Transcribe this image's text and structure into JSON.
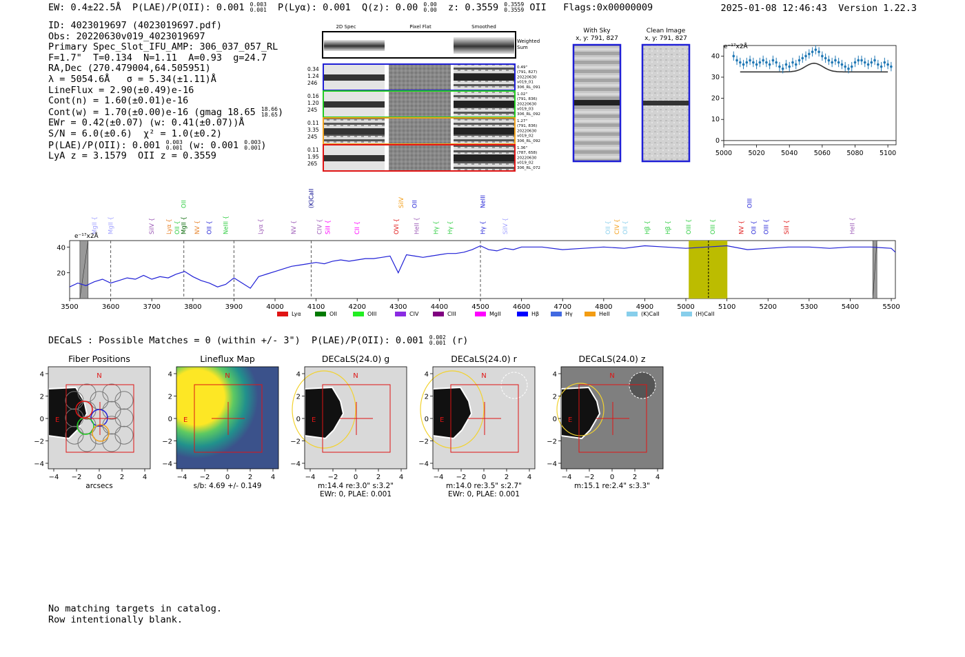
{
  "header": {
    "ew_label": "EW:",
    "ew_value": "0.4±22.5Å",
    "plae_label": "P(LAE)/P(OII):",
    "plae_value": "0.001",
    "plae_sup": "0.003",
    "plae_sub": "0.001",
    "plya_label": "P(Lyα):",
    "plya_value": "0.001",
    "qz_label": "Q(z):",
    "qz_value": "0.00",
    "qz_sup": "0.00",
    "qz_sub": "0.00",
    "z_label": "z:",
    "z_value": "0.3559",
    "z_sup": "0.3559",
    "z_sub": "0.3559",
    "z_line": "OII",
    "flags": "Flags:0x00000009",
    "timestamp": "2025-01-08 12:46:43",
    "version": "Version 1.22.3"
  },
  "info": {
    "id": "ID: 4023019697 (4023019697.pdf)",
    "obs": "Obs: 20220630v019_4023019697",
    "primary": "Primary Spec_Slot_IFU_AMP: 306_037_057_RL",
    "params": "F=1.7\"  T=0.134  N=1.11  A=0.93  g=24.7",
    "radec": "RA,Dec (270.479004,64.505951)",
    "lambda": "λ = 5054.6Å   σ = 5.34(±1.11)Å",
    "lineflux": "LineFlux = 2.90(±0.49)e-16",
    "contn": "Cont(n) = 1.60(±0.01)e-16",
    "contw": "Cont(w) = 1.70(±0.00)e-16 (gmag 18.65",
    "gmag_sup": "18.66",
    "gmag_sub": "18.65",
    "contw_close": ")",
    "ewr": "EWr = 0.42(±0.07) (w: 0.41(±0.07))Å",
    "sn": "S/N = 6.0(±0.6)  χ² = 1.0(±0.2)",
    "plae": "P(LAE)/P(OII): 0.001",
    "plae_sup": "0.003",
    "plae_sub": "0.001",
    "plae_w": "(w: 0.001",
    "plae_w_sup": "0.003",
    "plae_w_sub": "0.001",
    "plae_close": ")",
    "lya": "LyA z = 3.1579  OII z = 0.3559"
  },
  "cutouts": {
    "col_2d": "2D Spec",
    "col_flat": "Pixel Flat",
    "col_smooth": "Smoothed",
    "weighted_sum": [
      "Weighted",
      "Sum"
    ],
    "rows": [
      {
        "left": [
          "0.34",
          "1.24",
          "246"
        ],
        "right": [
          "0.49\"",
          "(791, 827)",
          "20220630",
          "v019_01",
          "306_RL_091"
        ],
        "color": "#1f1fd6"
      },
      {
        "left": [
          "0.16",
          "1.20",
          "245"
        ],
        "right": [
          "1.02\"",
          "(791, 836)",
          "20220630",
          "v019_03",
          "306_RL_092"
        ],
        "color": "#22cc22"
      },
      {
        "left": [
          "0.11",
          "3.35",
          "245"
        ],
        "right": [
          "1.27\"",
          "(791, 836)",
          "20220630",
          "v019_02",
          "306_RL_092"
        ],
        "color": "#f2a21d"
      },
      {
        "left": [
          "0.11",
          "1.95",
          "265"
        ],
        "right": [
          "1.36\"",
          "(787, 658)",
          "20220630",
          "v019_02",
          "306_RL_072"
        ],
        "color": "#e01414"
      }
    ]
  },
  "sky": {
    "with_sky_title": "With Sky",
    "with_sky_xy": "x, y: 791, 827",
    "clean_title": "Clean Image",
    "clean_xy": "x, y: 791, 827"
  },
  "chart_data": [
    {
      "type": "scatter",
      "title": "",
      "ylabel": "e⁻¹⁷x2Å",
      "xlim": [
        5000,
        5105
      ],
      "ylim": [
        -2,
        45
      ],
      "xticks": [
        "5000",
        "5020",
        "5040",
        "5060",
        "5080",
        "5100"
      ],
      "yticks": [
        "0",
        "10",
        "20",
        "30",
        "40"
      ],
      "x": [
        5006,
        5008,
        5010,
        5012,
        5014,
        5016,
        5018,
        5020,
        5022,
        5024,
        5026,
        5028,
        5030,
        5032,
        5034,
        5036,
        5038,
        5040,
        5042,
        5044,
        5046,
        5048,
        5050,
        5052,
        5054,
        5056,
        5058,
        5060,
        5062,
        5064,
        5066,
        5068,
        5070,
        5072,
        5074,
        5076,
        5078,
        5080,
        5082,
        5084,
        5086,
        5088,
        5090,
        5092,
        5094,
        5096,
        5098,
        5100,
        5102
      ],
      "y": [
        40,
        38,
        37,
        36,
        37,
        38,
        37,
        36,
        37,
        38,
        37,
        36,
        38,
        37,
        35,
        34,
        36,
        35,
        37,
        36,
        38,
        39,
        40,
        41,
        42,
        43,
        42,
        40,
        39,
        38,
        37,
        38,
        37,
        36,
        35,
        34,
        35,
        37,
        38,
        38,
        37,
        36,
        37,
        38,
        36,
        35,
        37,
        36,
        35
      ],
      "yerr": 2.2,
      "model": {
        "base": 32.5,
        "peak": 36.6,
        "center": 5055,
        "sigma": 5.34
      }
    },
    {
      "type": "line",
      "title": "",
      "ylabel": "e⁻¹⁷x2Å",
      "xlim": [
        3500,
        5510
      ],
      "ylim": [
        0,
        45
      ],
      "xticks": [
        "3500",
        "3600",
        "3700",
        "3800",
        "3900",
        "4000",
        "4100",
        "4200",
        "4300",
        "4400",
        "4500",
        "4600",
        "4700",
        "4800",
        "4900",
        "5000",
        "5100",
        "5200",
        "5300",
        "5400",
        "5500"
      ],
      "yticks": [
        "20",
        "40"
      ],
      "x": [
        3500,
        3520,
        3540,
        3560,
        3580,
        3600,
        3620,
        3640,
        3660,
        3680,
        3700,
        3720,
        3740,
        3760,
        3780,
        3800,
        3820,
        3840,
        3860,
        3880,
        3900,
        3920,
        3940,
        3960,
        3980,
        4000,
        4020,
        4040,
        4060,
        4080,
        4100,
        4120,
        4140,
        4160,
        4180,
        4200,
        4220,
        4240,
        4260,
        4280,
        4300,
        4320,
        4340,
        4360,
        4380,
        4400,
        4420,
        4440,
        4460,
        4480,
        4500,
        4520,
        4540,
        4560,
        4580,
        4600,
        4650,
        4700,
        4750,
        4800,
        4850,
        4900,
        4950,
        5000,
        5050,
        5100,
        5150,
        5200,
        5250,
        5300,
        5350,
        5400,
        5450,
        5500,
        5510
      ],
      "y": [
        9,
        12,
        10,
        13,
        15,
        12,
        14,
        16,
        15,
        18,
        15,
        17,
        16,
        19,
        21,
        17,
        14,
        12,
        9,
        11,
        16,
        12,
        8,
        17,
        19,
        21,
        23,
        25,
        26,
        27,
        28,
        27,
        29,
        30,
        29,
        30,
        31,
        31,
        32,
        33,
        20,
        34,
        33,
        32,
        33,
        34,
        35,
        35,
        36,
        38,
        41,
        38,
        37,
        39,
        38,
        40,
        40,
        38,
        39,
        40,
        39,
        41,
        40,
        39,
        40,
        41,
        38,
        39,
        40,
        40,
        39,
        40,
        40,
        39,
        36
      ],
      "vlines": [
        3600,
        3778,
        3900,
        4088,
        4500
      ],
      "highlight": [
        5007,
        5101
      ],
      "highlight_line": 5055,
      "sky_masks": [
        [
          3525,
          3545
        ],
        [
          5455,
          5465
        ]
      ],
      "line_ids": [
        {
          "name": "MgII",
          "x": 3560,
          "color": "#a0a0ff"
        },
        {
          "name": "MgII",
          "x": 3600,
          "color": "#a0a0ff"
        },
        {
          "name": "SiIV",
          "x": 3700,
          "color": "#9b59b6"
        },
        {
          "name": "Lyα",
          "x": 3742,
          "color": "#e67e22"
        },
        {
          "name": "OII",
          "x": 3762,
          "color": "#2ecc40"
        },
        {
          "name": "MgII",
          "x": 3778,
          "color": "#006400"
        },
        {
          "name": "NV",
          "x": 3810,
          "color": "#e67e22"
        },
        {
          "name": "OII",
          "x": 3840,
          "color": "#1f1fd6"
        },
        {
          "name": "NeIII",
          "x": 3880,
          "color": "#2ecc40"
        },
        {
          "name": "Lyα",
          "x": 3965,
          "color": "#9b59b6"
        },
        {
          "name": "NV",
          "x": 4045,
          "color": "#9b59b6"
        },
        {
          "name": "CIV",
          "x": 4108,
          "color": "#9b59b6"
        },
        {
          "name": "SiII",
          "x": 4128,
          "color": "#ff00ff"
        },
        {
          "name": "CII",
          "x": 4200,
          "color": "#ff00ff"
        },
        {
          "name": "OVI",
          "x": 4295,
          "color": "#e01414"
        },
        {
          "name": "HeII",
          "x": 4345,
          "color": "#9b59b6"
        },
        {
          "name": "Hγ",
          "x": 4392,
          "color": "#2ecc40"
        },
        {
          "name": "Hγ",
          "x": 4426,
          "color": "#2ecc40"
        },
        {
          "name": "Hγ",
          "x": 4506,
          "color": "#1f1fd6"
        },
        {
          "name": "SiIV",
          "x": 4560,
          "color": "#a0a0ff"
        },
        {
          "name": "OII",
          "x": 4810,
          "color": "#87ceeb"
        },
        {
          "name": "CIV",
          "x": 4832,
          "color": "#f39c12"
        },
        {
          "name": "OII",
          "x": 4852,
          "color": "#87ceeb"
        },
        {
          "name": "Hβ",
          "x": 4906,
          "color": "#2ecc40"
        },
        {
          "name": "Hβ",
          "x": 4956,
          "color": "#2ecc40"
        },
        {
          "name": "OIII",
          "x": 5007,
          "color": "#2ecc40"
        },
        {
          "name": "OIII",
          "x": 5065,
          "color": "#2ecc40"
        },
        {
          "name": "NV",
          "x": 5135,
          "color": "#e01414"
        },
        {
          "name": "OII",
          "x": 5165,
          "color": "#1f1fd6"
        },
        {
          "name": "OIII",
          "x": 5195,
          "color": "#1f1fd6"
        },
        {
          "name": "SiII",
          "x": 5245,
          "color": "#e01414"
        },
        {
          "name": "HeII",
          "x": 5405,
          "color": "#9b59b6"
        }
      ],
      "line_ids_top": [
        {
          "name": "OII",
          "x": 3778,
          "color": "#2ecc40"
        },
        {
          "name": "SiIV",
          "x": 4307,
          "color": "#f39c12"
        },
        {
          "name": "OII",
          "x": 4340,
          "color": "#1f1fd6"
        },
        {
          "name": "NeIII",
          "x": 4506,
          "color": "#1f1fd6"
        },
        {
          "name": "OIII",
          "x": 5155,
          "color": "#1f1fd6"
        },
        {
          "name": "(K)CaII",
          "x": 4088,
          "color": "#00008b"
        }
      ],
      "legend": [
        {
          "label": "Lyα",
          "color": "#e01414"
        },
        {
          "label": "OII",
          "color": "#007a00"
        },
        {
          "label": "OIII",
          "color": "#22ee22"
        },
        {
          "label": "CIV",
          "color": "#8a2be2"
        },
        {
          "label": "CIII",
          "color": "#800080"
        },
        {
          "label": "MgII",
          "color": "#ff00ff"
        },
        {
          "label": "Hβ",
          "color": "#0000ff"
        },
        {
          "label": "Hγ",
          "color": "#4169e1"
        },
        {
          "label": "HeII",
          "color": "#f39c12"
        },
        {
          "label": "(K)CaII",
          "color": "#87ceeb"
        },
        {
          "label": "(H)CaII",
          "color": "#87ceeb"
        }
      ]
    }
  ],
  "decals": {
    "title": "DECaLS : Possible Matches = 0 (within +/- 3\")  P(LAE)/P(OII): 0.001",
    "title_sup": "0.002",
    "title_sub": "0.001",
    "title_suffix": "(r)",
    "panels": [
      {
        "title": "Fiber Positions",
        "caption1": "arcsecs",
        "caption2": "",
        "n": "N",
        "e": "E"
      },
      {
        "title": "Lineflux Map",
        "caption1": "s/b: 4.69 +/- 0.149",
        "caption2": "",
        "n": "N",
        "e": "E"
      },
      {
        "title": "DECaLS(24.0) g",
        "caption1": "m:14.4  re:3.0\"  s:3.2\"",
        "caption2": "EWr: 0, PLAE: 0.001",
        "n": "N",
        "e": "E"
      },
      {
        "title": "DECaLS(24.0) r",
        "caption1": "m:14.0  re:3.5\"  s:2.7\"",
        "caption2": "EWr: 0, PLAE: 0.001",
        "n": "N",
        "e": "E"
      },
      {
        "title": "DECaLS(24.0) z",
        "caption1": "m:15.1  re:2.4\"  s:3.3\"",
        "caption2": "",
        "n": "N",
        "e": "E"
      }
    ],
    "axis_ticks": [
      "−4",
      "−2",
      "0",
      "2",
      "4"
    ]
  },
  "footer": {
    "line1": "No matching targets in catalog.",
    "line2": "Row intentionally blank."
  }
}
